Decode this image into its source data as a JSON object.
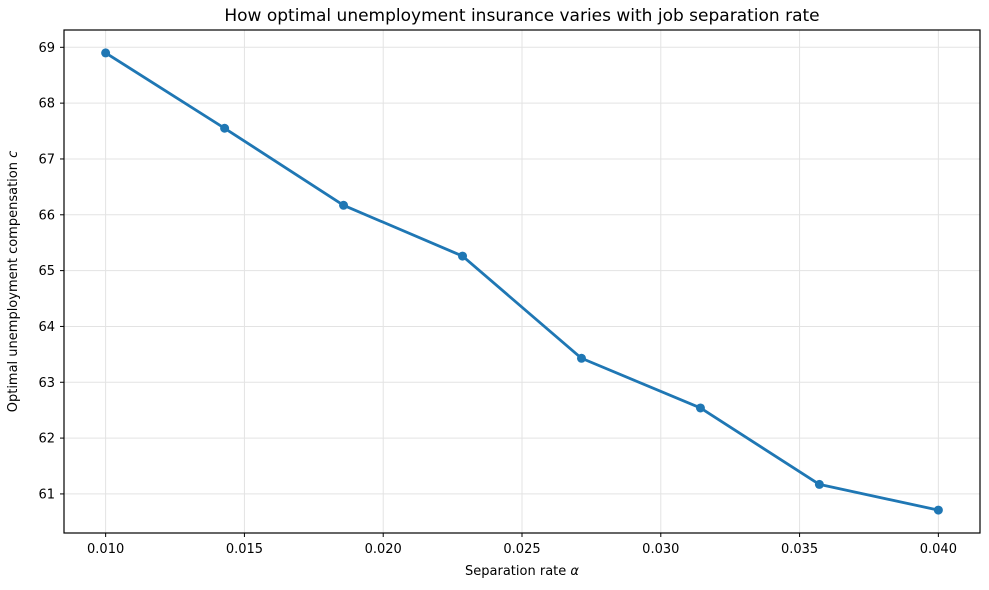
{
  "figure": {
    "background": "#ffffff"
  },
  "chart_data": {
    "type": "line",
    "title": "How optimal unemployment insurance varies with job separation rate",
    "xlabel": "Separation rate α",
    "xlabel_parts": [
      {
        "text": "Separation rate ",
        "italic": false
      },
      {
        "text": "α",
        "italic": true
      }
    ],
    "ylabel": "Optimal unemployment compensation c",
    "ylabel_parts": [
      {
        "text": "Optimal unemployment compensation ",
        "italic": false
      },
      {
        "text": "c",
        "italic": true
      }
    ],
    "series": [
      {
        "name": "optimal unemployment compensation",
        "x": [
          0.01,
          0.014286,
          0.018571,
          0.022857,
          0.027143,
          0.031429,
          0.035714,
          0.04
        ],
        "y": [
          68.9,
          67.55,
          66.17,
          65.26,
          63.43,
          62.54,
          61.17,
          60.71
        ],
        "color": "#1f77b4",
        "marker": "circle",
        "line_width": 2.8,
        "marker_radius": 4.5
      }
    ],
    "xlim": [
      0.0085,
      0.0415
    ],
    "ylim": [
      60.3,
      69.31
    ],
    "xticks": [
      0.01,
      0.015,
      0.02,
      0.025,
      0.03,
      0.035,
      0.04
    ],
    "xtick_labels": [
      "0.010",
      "0.015",
      "0.020",
      "0.025",
      "0.030",
      "0.035",
      "0.040"
    ],
    "yticks": [
      61,
      62,
      63,
      64,
      65,
      66,
      67,
      68,
      69
    ],
    "ytick_labels": [
      "61",
      "62",
      "63",
      "64",
      "65",
      "66",
      "67",
      "68",
      "69"
    ],
    "grid": true,
    "grid_color": "#e3e3e3",
    "axis_color": "#000000",
    "text_color": "#000000",
    "legend_position": "none"
  }
}
